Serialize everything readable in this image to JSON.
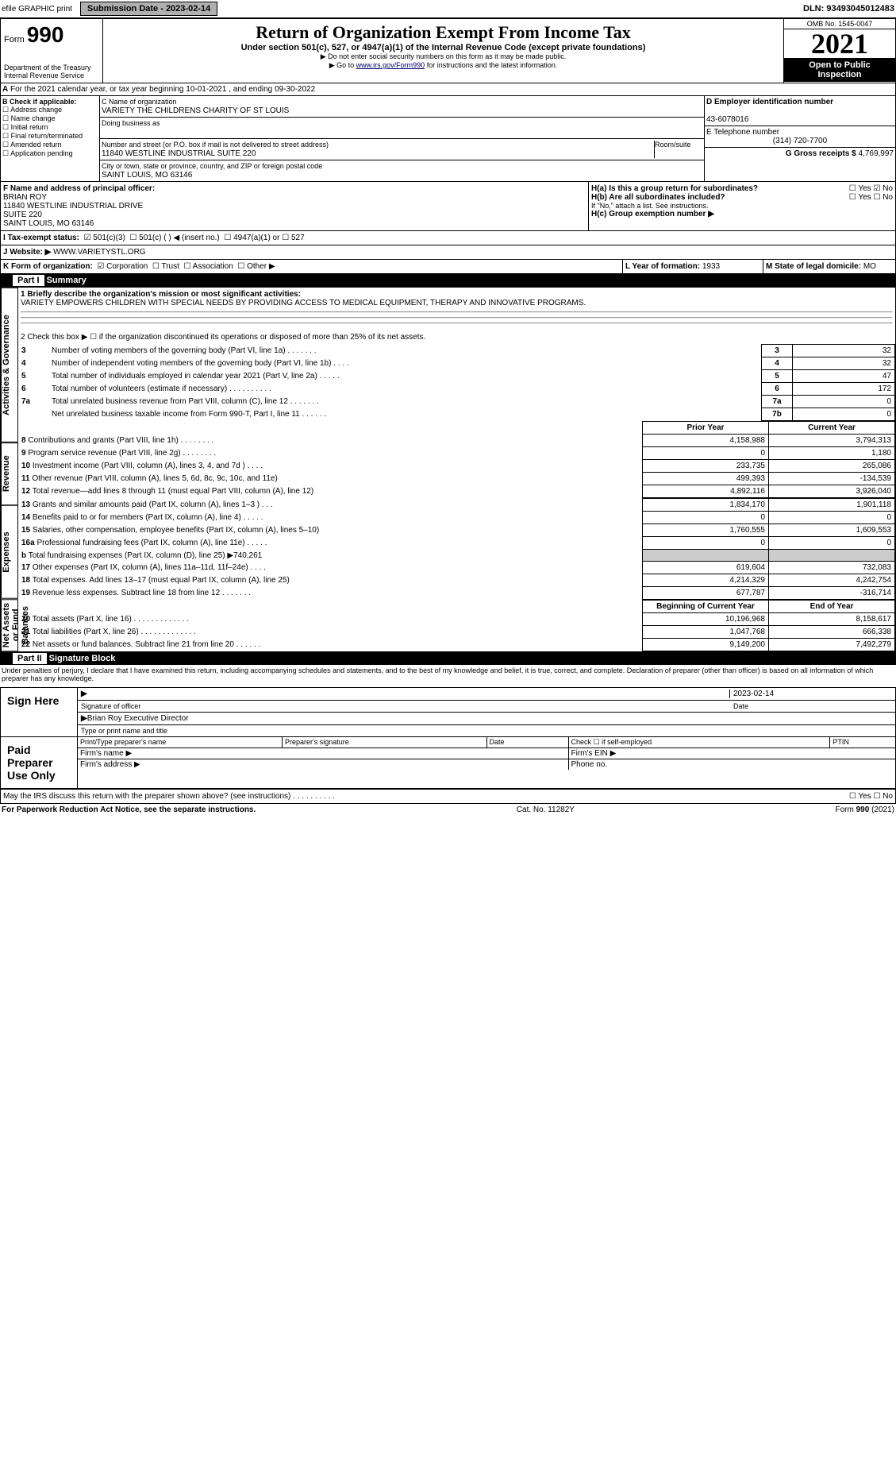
{
  "top_bar": {
    "efile": "efile GRAPHIC print",
    "submission_btn": "Submission Date - 2023-02-14",
    "dln": "DLN: 93493045012483"
  },
  "header": {
    "form_label": "Form",
    "form_number": "990",
    "title": "Return of Organization Exempt From Income Tax",
    "subtitle": "Under section 501(c), 527, or 4947(a)(1) of the Internal Revenue Code (except private foundations)",
    "note1": "▶ Do not enter social security numbers on this form as it may be made public.",
    "note2_pre": "▶ Go to ",
    "note2_link": "www.irs.gov/Form990",
    "note2_post": " for instructions and the latest information.",
    "dept": "Department of the Treasury",
    "irs": "Internal Revenue Service",
    "omb": "OMB No. 1545-0047",
    "year": "2021",
    "open": "Open to Public Inspection"
  },
  "line_A": "For the 2021 calendar year, or tax year beginning 10-01-2021    , and ending 09-30-2022",
  "box_B": {
    "label": "B Check if applicable:",
    "items": [
      "Address change",
      "Name change",
      "Initial return",
      "Final return/terminated",
      "Amended return",
      "Application pending"
    ]
  },
  "box_C": {
    "name_label": "C Name of organization",
    "name": "VARIETY THE CHILDRENS CHARITY OF ST LOUIS",
    "dba_label": "Doing business as",
    "addr_label": "Number and street (or P.O. box if mail is not delivered to street address)",
    "room_label": "Room/suite",
    "addr": "11840 WESTLINE INDUSTRIAL SUITE 220",
    "city_label": "City or town, state or province, country, and ZIP or foreign postal code",
    "city": "SAINT LOUIS, MO  63146"
  },
  "box_D": {
    "label": "D Employer identification number",
    "value": "43-6078016"
  },
  "box_E": {
    "label": "E Telephone number",
    "value": "(314) 720-7700"
  },
  "box_G": {
    "label": "G Gross receipts $",
    "value": "4,769,997"
  },
  "box_F": {
    "label": "F  Name and address of principal officer:",
    "lines": [
      "BRIAN ROY",
      "11840 WESTLINE INDUSTRIAL DRIVE",
      "SUITE 220",
      "SAINT LOUIS, MO  63146"
    ]
  },
  "box_H": {
    "a_label": "H(a)  Is this a group return for subordinates?",
    "a_yes": "Yes",
    "a_no": "No",
    "b_label": "H(b)  Are all subordinates included?",
    "b_note": "If \"No,\" attach a list. See instructions.",
    "c_label": "H(c)  Group exemption number ▶"
  },
  "box_I": {
    "label": "I   Tax-exempt status:",
    "opts": [
      "501(c)(3)",
      "501(c) (  ) ◀ (insert no.)",
      "4947(a)(1) or",
      "527"
    ]
  },
  "box_J": {
    "label": "J   Website: ▶",
    "value": "WWW.VARIETYSTL.ORG"
  },
  "box_K": {
    "label": "K Form of organization:",
    "opts": [
      "Corporation",
      "Trust",
      "Association",
      "Other ▶"
    ]
  },
  "box_L": {
    "label": "L Year of formation:",
    "value": "1933"
  },
  "box_M": {
    "label": "M State of legal domicile:",
    "value": "MO"
  },
  "part1": {
    "hdr": "Part I",
    "title": "Summary",
    "sections": {
      "gov": {
        "label": "Activities & Governance",
        "line1_label": "1   Briefly describe the organization's mission or most significant activities:",
        "line1_text": "VARIETY EMPOWERS CHILDREN WITH SPECIAL NEEDS BY PROVIDING ACCESS TO MEDICAL EQUIPMENT, THERAPY AND INNOVATIVE PROGRAMS.",
        "line2": "2   Check this box ▶ ☐  if the organization discontinued its operations or disposed of more than 25% of its net assets.",
        "rows": [
          {
            "n": "3",
            "t": "Number of voting members of the governing body (Part VI, line 1a)   .    .    .    .    .    .    .",
            "b": "3",
            "v": "32"
          },
          {
            "n": "4",
            "t": "Number of independent voting members of the governing body (Part VI, line 1b)   .    .    .    .",
            "b": "4",
            "v": "32"
          },
          {
            "n": "5",
            "t": "Total number of individuals employed in calendar year 2021 (Part V, line 2a)   .    .    .    .    .",
            "b": "5",
            "v": "47"
          },
          {
            "n": "6",
            "t": "Total number of volunteers (estimate if necessary)   .    .    .    .    .    .    .    .    .    .",
            "b": "6",
            "v": "172"
          },
          {
            "n": "7a",
            "t": "Total unrelated business revenue from Part VIII, column (C), line 12   .    .    .    .    .    .    .",
            "b": "7a",
            "v": "0"
          },
          {
            "n": "",
            "t": "Net unrelated business taxable income from Form 990-T, Part I, line 11   .    .    .    .    .    .",
            "b": "7b",
            "v": "0"
          }
        ]
      },
      "rev": {
        "label": "Revenue",
        "hdr_prior": "Prior Year",
        "hdr_curr": "Current Year",
        "rows": [
          {
            "n": "8",
            "t": "Contributions and grants (Part VIII, line 1h)   .    .    .    .    .    .    .    .",
            "p": "4,158,988",
            "c": "3,794,313"
          },
          {
            "n": "9",
            "t": "Program service revenue (Part VIII, line 2g)   .    .    .    .    .    .    .    .",
            "p": "0",
            "c": "1,180"
          },
          {
            "n": "10",
            "t": "Investment income (Part VIII, column (A), lines 3, 4, and 7d )   .    .    .    .",
            "p": "233,735",
            "c": "265,086"
          },
          {
            "n": "11",
            "t": "Other revenue (Part VIII, column (A), lines 5, 6d, 8c, 9c, 10c, and 11e)",
            "p": "499,393",
            "c": "-134,539"
          },
          {
            "n": "12",
            "t": "Total revenue—add lines 8 through 11 (must equal Part VIII, column (A), line 12)",
            "p": "4,892,116",
            "c": "3,926,040"
          }
        ]
      },
      "exp": {
        "label": "Expenses",
        "rows": [
          {
            "n": "13",
            "t": "Grants and similar amounts paid (Part IX, column (A), lines 1–3 )   .    .    .",
            "p": "1,834,170",
            "c": "1,901,118"
          },
          {
            "n": "14",
            "t": "Benefits paid to or for members (Part IX, column (A), line 4)   .    .    .    .    .",
            "p": "0",
            "c": "0"
          },
          {
            "n": "15",
            "t": "Salaries, other compensation, employee benefits (Part IX, column (A), lines 5–10)",
            "p": "1,760,555",
            "c": "1,609,553"
          },
          {
            "n": "16a",
            "t": "Professional fundraising fees (Part IX, column (A), line 11e)   .    .    .    .    .",
            "p": "0",
            "c": "0"
          },
          {
            "n": "b",
            "t": "Total fundraising expenses (Part IX, column (D), line 25) ▶740,261",
            "p": "",
            "c": ""
          },
          {
            "n": "17",
            "t": "Other expenses (Part IX, column (A), lines 11a–11d, 11f–24e)   .    .    .    .",
            "p": "619,604",
            "c": "732,083"
          },
          {
            "n": "18",
            "t": "Total expenses. Add lines 13–17 (must equal Part IX, column (A), line 25)",
            "p": "4,214,329",
            "c": "4,242,754"
          },
          {
            "n": "19",
            "t": "Revenue less expenses. Subtract line 18 from line 12   .    .    .    .    .    .    .",
            "p": "677,787",
            "c": "-316,714"
          }
        ]
      },
      "net": {
        "label": "Net Assets or Fund Balances",
        "hdr_prior": "Beginning of Current Year",
        "hdr_curr": "End of Year",
        "rows": [
          {
            "n": "20",
            "t": "Total assets (Part X, line 16)   .    .    .    .    .    .    .    .    .    .    .    .    .",
            "p": "10,196,968",
            "c": "8,158,617"
          },
          {
            "n": "21",
            "t": "Total liabilities (Part X, line 26)   .    .    .    .    .    .    .    .    .    .    .    .    .",
            "p": "1,047,768",
            "c": "666,338"
          },
          {
            "n": "22",
            "t": "Net assets or fund balances. Subtract line 21 from line 20   .    .    .    .    .    .",
            "p": "9,149,200",
            "c": "7,492,279"
          }
        ]
      }
    }
  },
  "part2": {
    "hdr": "Part II",
    "title": "Signature Block",
    "decl": "Under penalties of perjury, I declare that I have examined this return, including accompanying schedules and statements, and to the best of my knowledge and belief, it is true, correct, and complete. Declaration of preparer (other than officer) is based on all information of which preparer has any knowledge.",
    "sign_here": "Sign Here",
    "sig_officer": "Signature of officer",
    "sig_date": "2023-02-14",
    "date_label": "Date",
    "typed_name": "Brian Roy  Executive Director",
    "typed_label": "Type or print name and title",
    "paid": "Paid Preparer Use Only",
    "prep_name_label": "Print/Type preparer's name",
    "prep_sig_label": "Preparer's signature",
    "prep_date_label": "Date",
    "prep_check": "Check ☐ if self-employed",
    "ptin_label": "PTIN",
    "firm_name": "Firm's name   ▶",
    "firm_ein": "Firm's EIN ▶",
    "firm_addr": "Firm's address ▶",
    "phone": "Phone no.",
    "discuss": "May the IRS discuss this return with the preparer shown above? (see instructions)   .    .    .    .    .    .    .    .    .    .",
    "discuss_yes": "☐ Yes  ☐ No"
  },
  "footer": {
    "left": "For Paperwork Reduction Act Notice, see the separate instructions.",
    "mid": "Cat. No. 11282Y",
    "right": "Form 990 (2021)"
  },
  "colors": {
    "black": "#000000",
    "white": "#ffffff",
    "link": "#000066",
    "gray_btn": "#b0b0b0"
  }
}
